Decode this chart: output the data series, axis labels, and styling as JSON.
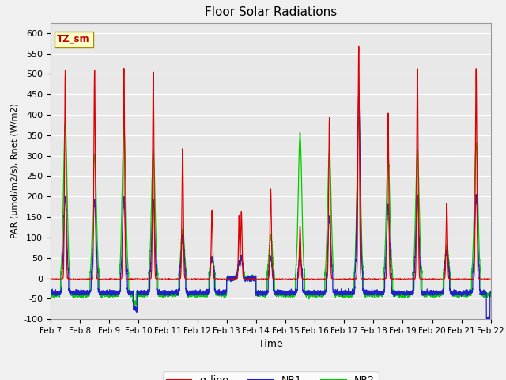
{
  "title": "Floor Solar Radiations",
  "xlabel": "Time",
  "ylabel": "PAR (umol/m2/s), Rnet (W/m2)",
  "ylim": [
    -100,
    625
  ],
  "yticks": [
    -100,
    -50,
    0,
    50,
    100,
    150,
    200,
    250,
    300,
    350,
    400,
    450,
    500,
    550,
    600
  ],
  "bg_color": "#e8e8e8",
  "legend_label": "TZ_sm",
  "line_colors": {
    "q_line": "#dd0000",
    "NR1": "#2222cc",
    "NR2": "#00cc00"
  },
  "n_days": 15,
  "start_day": 7,
  "end_day": 22,
  "figsize": [
    6.4,
    4.8
  ],
  "dpi": 100
}
